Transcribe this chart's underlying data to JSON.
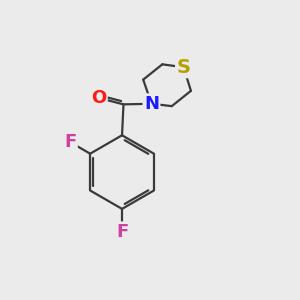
{
  "background_color": "#ebebeb",
  "bond_color": "#3a3a3a",
  "atom_colors": {
    "O": "#ff1a1a",
    "N": "#1a1aff",
    "S": "#b8a000",
    "F": "#d040a0"
  },
  "bond_width": 1.6,
  "font_size": 13
}
